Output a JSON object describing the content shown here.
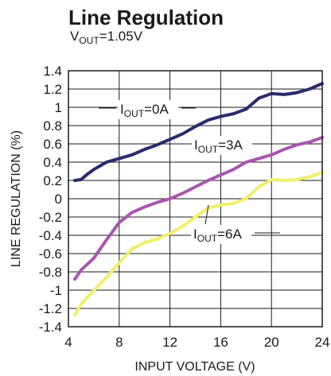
{
  "chart_data": {
    "type": "line",
    "title": "Line Regulation",
    "subtitle": {
      "main": "V",
      "sub": "OUT",
      "rest": "=1.05V"
    },
    "xlabel": "INPUT VOLTAGE (V)",
    "ylabel": "LINE REGULATION (%)",
    "xlim": [
      4,
      24
    ],
    "ylim": [
      -1.4,
      1.4
    ],
    "x_ticks": [
      4,
      8,
      12,
      16,
      20,
      24
    ],
    "y_ticks": [
      1.4,
      1.2,
      1,
      0.8,
      0.6,
      0.4,
      0.2,
      0,
      -0.2,
      -0.4,
      -0.6,
      -0.8,
      -1,
      -1.2,
      -1.4
    ],
    "grid": true,
    "legend": "inline labels",
    "series": [
      {
        "name_main": "I",
        "name_sub": "OUT",
        "name_rest": "=0A",
        "color": "#2b2a6b",
        "x": [
          4.5,
          5,
          5.5,
          6,
          7,
          8,
          9,
          10,
          11,
          12,
          13,
          14,
          15,
          16,
          17,
          18,
          19,
          20,
          21,
          22,
          23,
          24
        ],
        "y": [
          0.2,
          0.21,
          0.27,
          0.32,
          0.4,
          0.44,
          0.48,
          0.54,
          0.59,
          0.65,
          0.71,
          0.79,
          0.86,
          0.9,
          0.93,
          0.98,
          1.1,
          1.15,
          1.14,
          1.16,
          1.2,
          1.26
        ]
      },
      {
        "name_main": "I",
        "name_sub": "OUT",
        "name_rest": "=3A",
        "color": "#a856b0",
        "x": [
          4.5,
          5,
          6,
          7,
          8,
          9,
          10,
          11,
          12,
          13,
          14,
          15,
          16,
          17,
          18,
          19,
          20,
          21,
          22,
          23,
          24
        ],
        "y": [
          -0.88,
          -0.78,
          -0.65,
          -0.45,
          -0.26,
          -0.15,
          -0.09,
          -0.04,
          0.0,
          0.06,
          0.13,
          0.2,
          0.26,
          0.32,
          0.4,
          0.44,
          0.48,
          0.54,
          0.59,
          0.62,
          0.67
        ]
      },
      {
        "name_main": "I",
        "name_sub": "OUT",
        "name_rest": "=6A",
        "color": "#f2ee6b",
        "x": [
          4.5,
          5,
          6,
          7,
          8,
          9,
          10,
          11,
          12,
          13,
          14,
          15,
          16,
          17,
          18,
          19,
          20,
          21,
          22,
          23,
          24
        ],
        "y": [
          -1.27,
          -1.15,
          -1.0,
          -0.86,
          -0.7,
          -0.55,
          -0.48,
          -0.44,
          -0.38,
          -0.3,
          -0.2,
          -0.1,
          -0.07,
          -0.05,
          0.0,
          0.13,
          0.21,
          0.2,
          0.21,
          0.24,
          0.29
        ]
      }
    ]
  }
}
